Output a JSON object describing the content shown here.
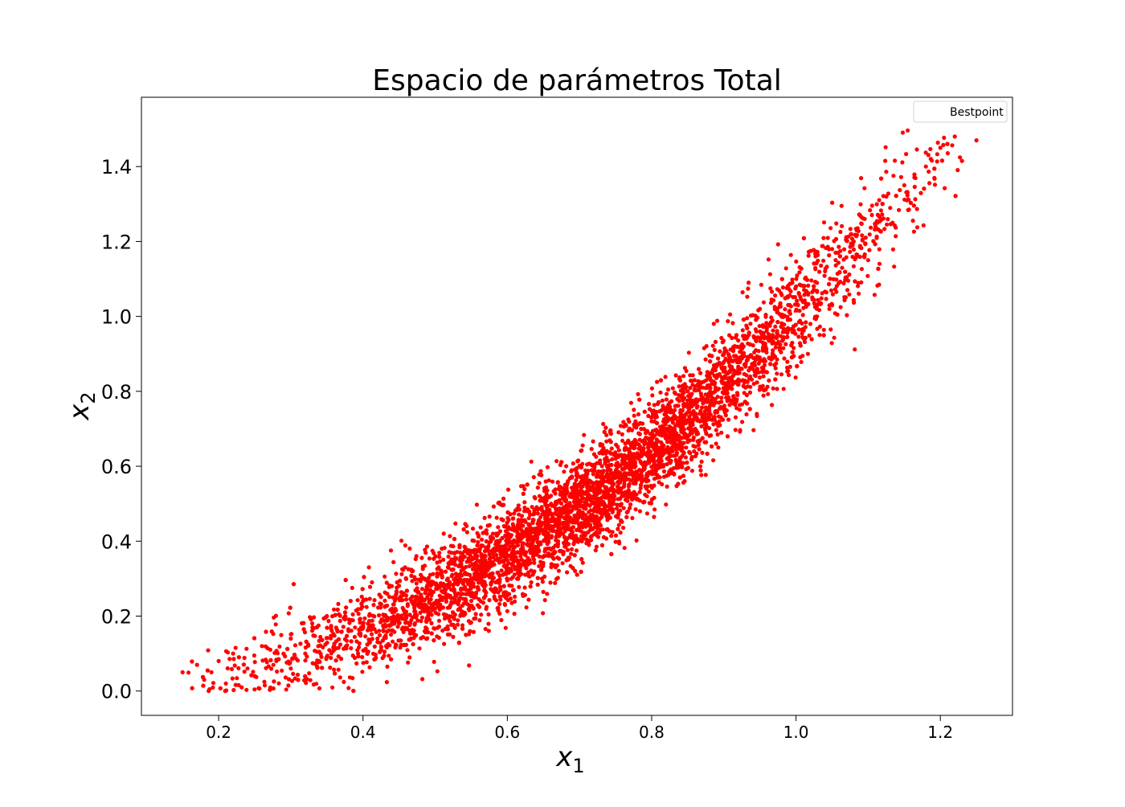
{
  "chart_data": {
    "type": "scatter",
    "title": "Espacio de parámetros Total",
    "xlabel": "x",
    "xlabel_sub": "1",
    "ylabel": "x",
    "ylabel_sub": "2",
    "xlim": [
      0.093,
      1.3
    ],
    "ylim": [
      -0.065,
      1.585
    ],
    "xticks": [
      0.2,
      0.4,
      0.6,
      0.8,
      1.0,
      1.2
    ],
    "xtick_labels": [
      "0.2",
      "0.4",
      "0.6",
      "0.8",
      "1.0",
      "1.2"
    ],
    "yticks": [
      0.0,
      0.2,
      0.4,
      0.6,
      0.8,
      1.0,
      1.2,
      1.4
    ],
    "ytick_labels": [
      "0.0",
      "0.2",
      "0.4",
      "0.6",
      "0.8",
      "1.0",
      "1.2",
      "1.4"
    ],
    "grid": false,
    "legend": {
      "position": "top-right",
      "entries": [
        "Bestpoint"
      ]
    },
    "series": [
      {
        "name": "Bestpoint",
        "color": "#ffffff",
        "points": [
          [
            1.0,
            1.0
          ]
        ]
      },
      {
        "color": "#ff0000",
        "description_points": [
          [
            0.15,
            0.05
          ],
          [
            0.17,
            0.07
          ],
          [
            0.18,
            0.03
          ],
          [
            0.19,
            0.05
          ],
          [
            0.2,
            0.08
          ],
          [
            0.21,
            0.02
          ],
          [
            0.22,
            0.1
          ],
          [
            0.24,
            0.06
          ],
          [
            0.25,
            0.04
          ],
          [
            0.26,
            0.12
          ],
          [
            0.28,
            0.08
          ],
          [
            0.3,
            0.14
          ],
          [
            0.3,
            0.06
          ],
          [
            0.32,
            0.1
          ],
          [
            0.33,
            0.17
          ],
          [
            0.35,
            0.2
          ],
          [
            0.36,
            0.11
          ],
          [
            0.38,
            0.16
          ],
          [
            0.4,
            0.24
          ],
          [
            0.42,
            0.14
          ],
          [
            0.44,
            0.28
          ],
          [
            0.46,
            0.2
          ],
          [
            0.48,
            0.31
          ],
          [
            0.5,
            0.22
          ],
          [
            0.52,
            0.34
          ],
          [
            0.55,
            0.3
          ],
          [
            0.58,
            0.42
          ],
          [
            0.6,
            0.36
          ],
          [
            0.63,
            0.48
          ],
          [
            0.65,
            0.42
          ],
          [
            0.68,
            0.55
          ],
          [
            0.7,
            0.5
          ],
          [
            0.72,
            0.6
          ],
          [
            0.75,
            0.62
          ],
          [
            0.78,
            0.66
          ],
          [
            0.8,
            0.72
          ],
          [
            0.82,
            0.7
          ],
          [
            0.85,
            0.8
          ],
          [
            0.88,
            0.84
          ],
          [
            0.9,
            0.9
          ],
          [
            0.92,
            0.86
          ],
          [
            0.95,
            1.02
          ],
          [
            0.98,
            1.0
          ],
          [
            1.0,
            1.08
          ],
          [
            1.02,
            0.98
          ],
          [
            1.05,
            1.18
          ],
          [
            1.08,
            1.2
          ],
          [
            1.1,
            1.15
          ],
          [
            1.12,
            1.3
          ],
          [
            1.15,
            1.35
          ],
          [
            1.18,
            1.4
          ],
          [
            1.2,
            1.45
          ],
          [
            1.22,
            1.48
          ],
          [
            1.25,
            1.47
          ]
        ]
      }
    ]
  }
}
